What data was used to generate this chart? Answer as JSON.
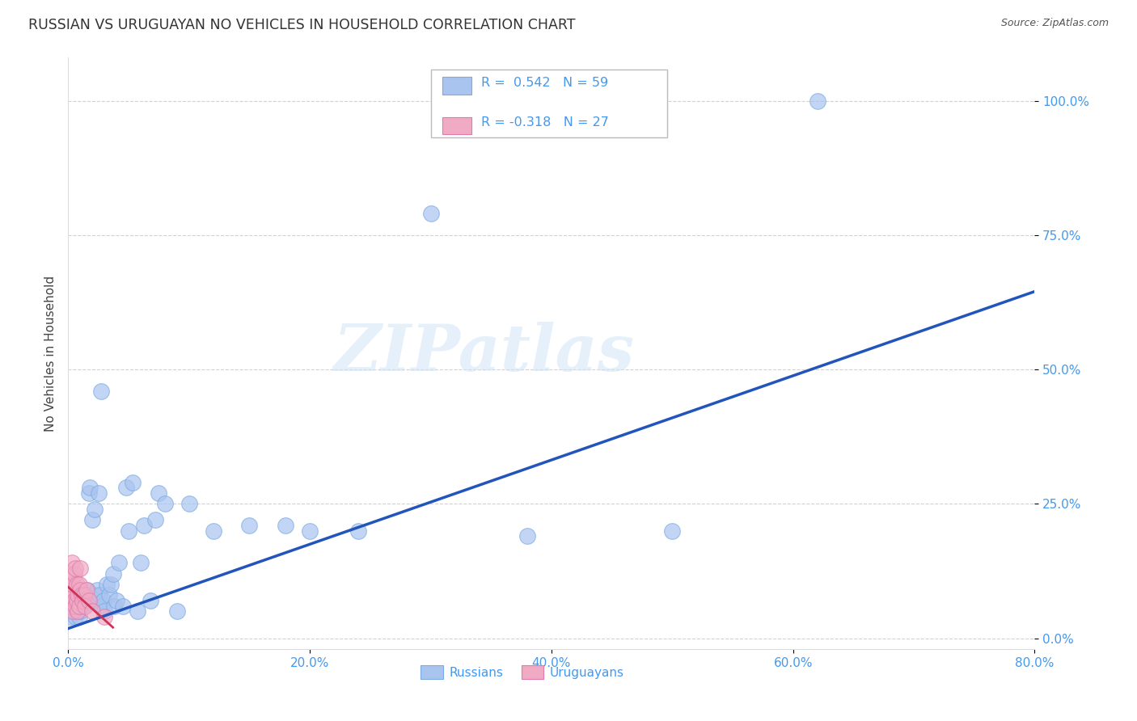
{
  "title": "RUSSIAN VS URUGUAYAN NO VEHICLES IN HOUSEHOLD CORRELATION CHART",
  "source": "Source: ZipAtlas.com",
  "ylabel": "No Vehicles in Household",
  "xlim": [
    0.0,
    0.8
  ],
  "ylim": [
    -0.02,
    1.08
  ],
  "ytick_positions": [
    0.0,
    0.25,
    0.5,
    0.75,
    1.0
  ],
  "xtick_positions": [
    0.0,
    0.2,
    0.4,
    0.6,
    0.8
  ],
  "grid_color": "#cccccc",
  "background_color": "#ffffff",
  "russian_color": "#aac4f0",
  "russian_edge_color": "#7aaae0",
  "uruguayan_color": "#f0aac4",
  "uruguayan_edge_color": "#e07aaa",
  "trendline_russian_color": "#2255bb",
  "trendline_uruguayan_color": "#cc3355",
  "tick_color": "#4499ee",
  "legend_R_russian": "R =  0.542",
  "legend_N_russian": "N = 59",
  "legend_R_uruguayan": "R = -0.318",
  "legend_N_uruguayan": "N = 27",
  "watermark": "ZIPatlas",
  "russians_x": [
    0.001,
    0.002,
    0.003,
    0.004,
    0.005,
    0.006,
    0.007,
    0.008,
    0.009,
    0.01,
    0.011,
    0.012,
    0.013,
    0.014,
    0.015,
    0.016,
    0.017,
    0.018,
    0.019,
    0.02,
    0.021,
    0.022,
    0.023,
    0.024,
    0.025,
    0.026,
    0.027,
    0.028,
    0.029,
    0.03,
    0.032,
    0.034,
    0.035,
    0.037,
    0.038,
    0.04,
    0.042,
    0.045,
    0.048,
    0.05,
    0.053,
    0.057,
    0.06,
    0.063,
    0.068,
    0.072,
    0.075,
    0.08,
    0.09,
    0.1,
    0.12,
    0.15,
    0.18,
    0.2,
    0.24,
    0.3,
    0.38,
    0.5,
    0.62
  ],
  "russians_y": [
    0.04,
    0.05,
    0.06,
    0.06,
    0.05,
    0.04,
    0.05,
    0.06,
    0.04,
    0.05,
    0.06,
    0.07,
    0.06,
    0.07,
    0.08,
    0.09,
    0.27,
    0.28,
    0.07,
    0.22,
    0.08,
    0.24,
    0.07,
    0.09,
    0.27,
    0.08,
    0.46,
    0.06,
    0.07,
    0.05,
    0.1,
    0.08,
    0.1,
    0.12,
    0.06,
    0.07,
    0.14,
    0.06,
    0.28,
    0.2,
    0.29,
    0.05,
    0.14,
    0.21,
    0.07,
    0.22,
    0.27,
    0.25,
    0.05,
    0.25,
    0.2,
    0.21,
    0.21,
    0.2,
    0.2,
    0.79,
    0.19,
    0.2,
    1.0
  ],
  "uruguayans_x": [
    0.001,
    0.002,
    0.002,
    0.003,
    0.003,
    0.004,
    0.004,
    0.005,
    0.005,
    0.006,
    0.006,
    0.007,
    0.007,
    0.008,
    0.008,
    0.009,
    0.009,
    0.01,
    0.01,
    0.011,
    0.012,
    0.013,
    0.014,
    0.015,
    0.017,
    0.02,
    0.03
  ],
  "uruguayans_y": [
    0.06,
    0.08,
    0.12,
    0.09,
    0.14,
    0.1,
    0.05,
    0.12,
    0.07,
    0.13,
    0.06,
    0.1,
    0.07,
    0.08,
    0.05,
    0.1,
    0.06,
    0.09,
    0.13,
    0.08,
    0.07,
    0.08,
    0.06,
    0.09,
    0.07,
    0.05,
    0.04
  ]
}
